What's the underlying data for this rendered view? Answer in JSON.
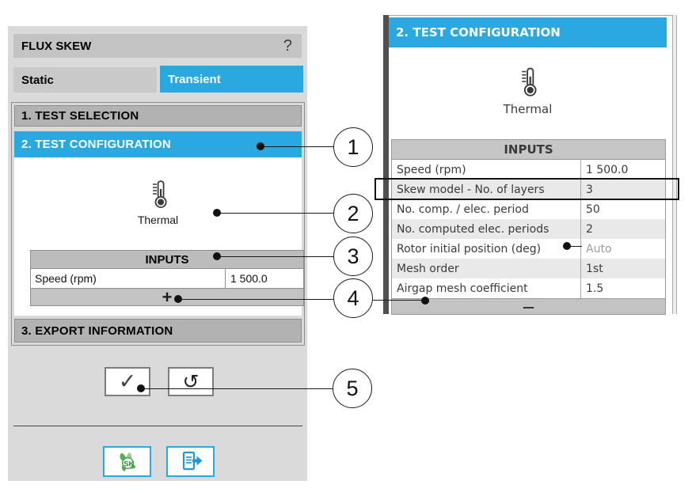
{
  "colors": {
    "accent": "#2aa9e0",
    "skew_green": "#3aa035",
    "muted_value": "#9c9c9c",
    "highlight_row": "#e9e9e9"
  },
  "annotations": {
    "callouts": [
      "1",
      "2",
      "3",
      "4",
      "5"
    ]
  },
  "left_panel": {
    "title": "FLUX SKEW",
    "help_label": "?",
    "tabs": [
      {
        "label": "Static"
      },
      {
        "label": "Transient"
      }
    ],
    "active_tab": "Transient",
    "sections": [
      {
        "label": "1. TEST SELECTION"
      },
      {
        "label": "2. TEST CONFIGURATION"
      },
      {
        "label": "3. EXPORT INFORMATION"
      }
    ],
    "test_type_label": "Thermal",
    "inputs": {
      "header": "INPUTS",
      "rows": [
        {
          "label": "Speed (rpm)",
          "value": "1 500.0"
        }
      ],
      "add_button": "+"
    },
    "icons": {
      "check_icon": "✓",
      "reset_icon": "↺",
      "skew_export_icon": "SK",
      "report_export_icon": "document-export"
    }
  },
  "right_panel": {
    "header": "2. TEST CONFIGURATION",
    "test_type_label": "Thermal",
    "inputs": {
      "header": "INPUTS",
      "rows": [
        {
          "label": "Speed (rpm)",
          "value": "1 500.0"
        },
        {
          "label": "Skew model - No. of layers",
          "value": "3",
          "highlighted": true
        },
        {
          "label": "No. comp. / elec. period",
          "value": "50"
        },
        {
          "label": "No. computed elec. periods",
          "value": "2"
        },
        {
          "label": "Rotor initial position (deg)",
          "value": "Auto",
          "muted": true,
          "annotated": true
        },
        {
          "label": "Mesh order",
          "value": "1st"
        },
        {
          "label": "Airgap mesh coefficient",
          "value": "1.5"
        }
      ],
      "remove_button": "—"
    }
  }
}
